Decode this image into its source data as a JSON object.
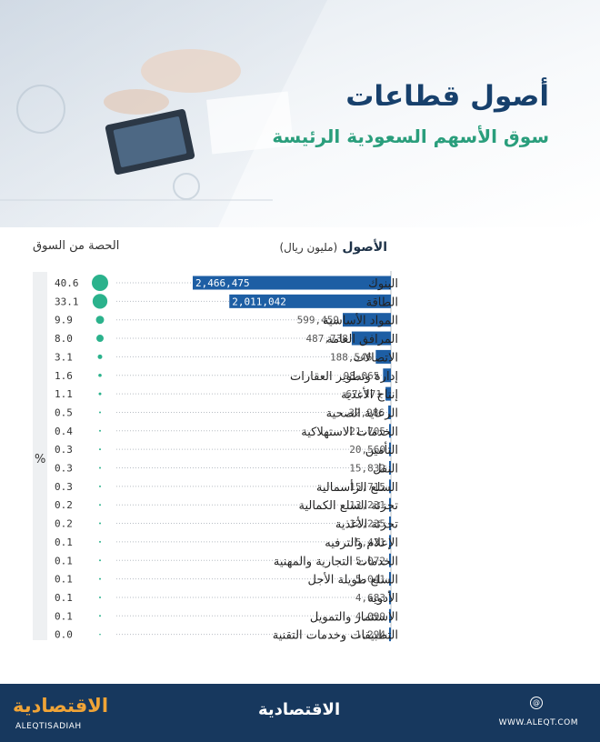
{
  "header": {
    "title": "أصول قطاعات",
    "subtitle": "سوق الأسهم السعودية الرئيسة"
  },
  "colors": {
    "bar": "#1d5ea4",
    "dot": "#2bb28c",
    "title": "#17406c",
    "subtitle": "#2a9e7c",
    "footer": "#17385e",
    "logo_accent": "#f0a437"
  },
  "chart_data": {
    "type": "bar",
    "orientation": "horizontal",
    "assets_header": "الأصول",
    "assets_unit": "(مليون ريال)",
    "share_header": "الحصة من السوق",
    "share_unit": "%",
    "categories": [
      "البنوك",
      "الطاقة",
      "المواد الأساسية",
      "المرافق العامة",
      "الاتصالات",
      "إدارة وتطوير العقارات",
      "إنتاج الأغذية",
      "الرعاية الصحية",
      "الخدمات الاستهلاكية",
      "التأمين",
      "النقل",
      "السلع الرأسمالية",
      "تجزئة السلع الكمالية",
      "تجزئة الأغذية",
      "الإعلام والترفيه",
      "الخدمات التجارية والمهنية",
      "السلع طويلة الأجل",
      "الأدوية",
      "الاستثمار والتمويل",
      "التطبيقات وخدمات التقنية"
    ],
    "values": [
      2466475,
      2011042,
      599459,
      487738,
      188546,
      98065,
      67171,
      32986,
      21705,
      20560,
      15832,
      15715,
      13231,
      12235,
      5421,
      5072,
      5041,
      4683,
      4099,
      1294
    ],
    "value_labels": [
      "2,466,475",
      "2,011,042",
      "599,459",
      "487,738",
      "188,546",
      "98,065",
      "67,171",
      "32,986",
      "21,705",
      "20,560",
      "15,832",
      "15,715",
      "13,231",
      "12,235",
      "5,421",
      "5,072",
      "5,041",
      "4,683",
      "4,099",
      "1,294"
    ],
    "share": [
      40.6,
      33.1,
      9.9,
      8.0,
      3.1,
      1.6,
      1.1,
      0.5,
      0.4,
      0.3,
      0.3,
      0.3,
      0.2,
      0.2,
      0.1,
      0.1,
      0.1,
      0.1,
      0.1,
      0.0
    ],
    "share_labels": [
      "40.6",
      "33.1",
      "9.9",
      "8.0",
      "3.1",
      "1.6",
      "1.1",
      "0.5",
      "0.4",
      "0.3",
      "0.3",
      "0.3",
      "0.2",
      "0.2",
      "0.1",
      "0.1",
      "0.1",
      "0.1",
      "0.1",
      "0.0"
    ]
  },
  "footer": {
    "logo_arabic": "الاقتصادية",
    "logo_latin": "ALEQTISADIAH",
    "center_logo": "الاقتصادية",
    "site_icon": "@",
    "site_url": "WWW.ALEQT.COM"
  }
}
